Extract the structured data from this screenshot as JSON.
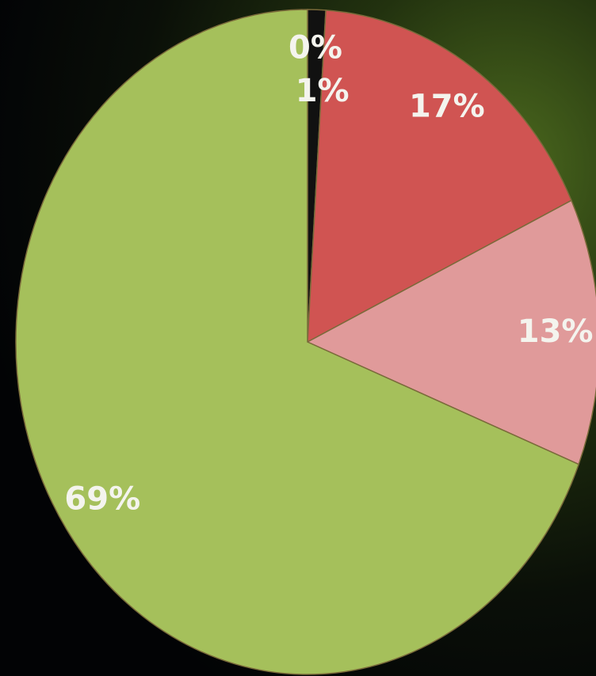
{
  "chart_data": {
    "type": "pie",
    "values": [
      0,
      1,
      17,
      13,
      69
    ],
    "value_labels": [
      "0%",
      "1%",
      "17%",
      "13%",
      "69%"
    ],
    "colors": [
      "#9aa0a0",
      "#111111",
      "#d05452",
      "#e09a9a",
      "#a5c05b"
    ]
  }
}
